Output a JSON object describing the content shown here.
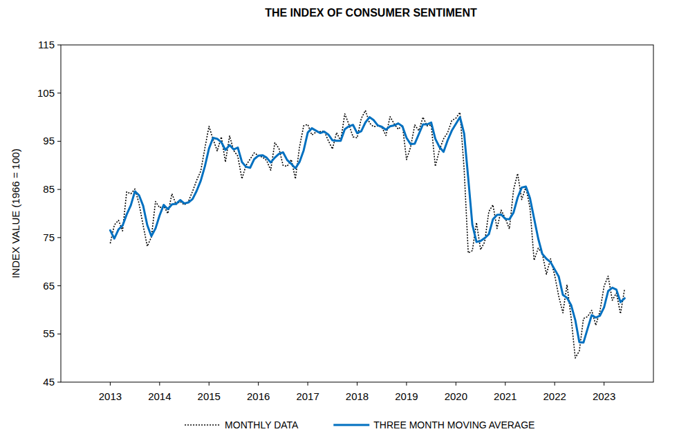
{
  "chart_data": {
    "type": "line",
    "title": "THE INDEX OF CONSUMER SENTIMENT",
    "y_label": "INDEX VALUE (1966 = 100)",
    "xlim": [
      2012,
      2024
    ],
    "xticks": [
      2013,
      2014,
      2015,
      2016,
      2017,
      2018,
      2019,
      2020,
      2021,
      2022,
      2023
    ],
    "ylim": [
      45,
      115
    ],
    "yticks": [
      45,
      55,
      65,
      75,
      85,
      95,
      105,
      115
    ],
    "grid": false,
    "legend": "bottom",
    "x": [
      2013,
      2013.083,
      2013.167,
      2013.25,
      2013.333,
      2013.417,
      2013.5,
      2013.583,
      2013.667,
      2013.75,
      2013.833,
      2013.917,
      2014,
      2014.083,
      2014.167,
      2014.25,
      2014.333,
      2014.417,
      2014.5,
      2014.583,
      2014.667,
      2014.75,
      2014.833,
      2014.917,
      2015,
      2015.083,
      2015.167,
      2015.25,
      2015.333,
      2015.417,
      2015.5,
      2015.583,
      2015.667,
      2015.75,
      2015.833,
      2015.917,
      2016,
      2016.083,
      2016.167,
      2016.25,
      2016.333,
      2016.417,
      2016.5,
      2016.583,
      2016.667,
      2016.75,
      2016.833,
      2016.917,
      2017,
      2017.083,
      2017.167,
      2017.25,
      2017.333,
      2017.417,
      2017.5,
      2017.583,
      2017.667,
      2017.75,
      2017.833,
      2017.917,
      2018,
      2018.083,
      2018.167,
      2018.25,
      2018.333,
      2018.417,
      2018.5,
      2018.583,
      2018.667,
      2018.75,
      2018.833,
      2018.917,
      2019,
      2019.083,
      2019.167,
      2019.25,
      2019.333,
      2019.417,
      2019.5,
      2019.583,
      2019.667,
      2019.75,
      2019.833,
      2019.917,
      2020,
      2020.083,
      2020.167,
      2020.25,
      2020.333,
      2020.417,
      2020.5,
      2020.583,
      2020.667,
      2020.75,
      2020.833,
      2020.917,
      2021,
      2021.083,
      2021.167,
      2021.25,
      2021.333,
      2021.417,
      2021.5,
      2021.583,
      2021.667,
      2021.75,
      2021.833,
      2021.917,
      2022,
      2022.083,
      2022.167,
      2022.25,
      2022.333,
      2022.417,
      2022.5,
      2022.583,
      2022.667,
      2022.75,
      2022.833,
      2022.917,
      2023,
      2023.083,
      2023.167,
      2023.25,
      2023.333,
      2023.417
    ],
    "series": [
      {
        "name": "MONTHLY DATA",
        "color": "#000000",
        "line_style": "dotted",
        "values": [
          73.8,
          77.6,
          78.6,
          76.4,
          84.5,
          84.1,
          85.1,
          82.1,
          77.5,
          73.2,
          75.1,
          82.5,
          81.2,
          81.6,
          80.0,
          84.1,
          81.9,
          82.5,
          81.8,
          82.5,
          84.6,
          86.9,
          88.8,
          93.6,
          98.1,
          95.4,
          93.0,
          95.9,
          90.7,
          96.1,
          93.1,
          91.9,
          87.2,
          90.0,
          91.3,
          92.6,
          92.0,
          91.7,
          91.0,
          89.0,
          94.7,
          93.5,
          90.0,
          89.8,
          91.2,
          87.2,
          93.8,
          98.2,
          98.5,
          96.3,
          96.9,
          97.0,
          97.1,
          95.1,
          93.4,
          96.8,
          95.1,
          100.7,
          98.5,
          95.9,
          95.7,
          99.7,
          101.4,
          98.8,
          98.0,
          98.2,
          97.9,
          96.2,
          100.1,
          98.6,
          97.5,
          98.3,
          91.2,
          93.8,
          98.4,
          97.2,
          100.0,
          98.2,
          98.4,
          89.8,
          93.2,
          95.5,
          96.8,
          99.3,
          99.8,
          101.0,
          89.1,
          71.8,
          72.3,
          78.1,
          72.5,
          74.1,
          80.4,
          81.8,
          76.9,
          80.7,
          79.0,
          76.8,
          84.9,
          88.3,
          82.9,
          85.5,
          81.2,
          70.3,
          72.8,
          71.7,
          67.4,
          70.6,
          67.2,
          62.8,
          59.4,
          65.2,
          58.4,
          50.0,
          51.5,
          58.2,
          58.6,
          59.9,
          56.8,
          59.7,
          64.9,
          67.0,
          62.0,
          63.5,
          59.2,
          64.4
        ]
      },
      {
        "name": "THREE MONTH MOVING AVERAGE",
        "color": "#0070c0",
        "line_style": "solid",
        "values": [
          76.5,
          74.8,
          76.7,
          77.5,
          79.8,
          81.7,
          84.6,
          83.8,
          81.6,
          77.6,
          75.3,
          76.9,
          79.6,
          81.8,
          80.9,
          81.9,
          82.0,
          82.8,
          82.1,
          82.3,
          83.0,
          84.7,
          86.8,
          89.8,
          93.5,
          95.7,
          95.5,
          94.8,
          93.2,
          94.2,
          93.3,
          93.7,
          90.7,
          89.7,
          89.5,
          91.3,
          92.0,
          92.1,
          91.6,
          90.6,
          91.6,
          92.4,
          92.7,
          91.1,
          90.3,
          89.4,
          90.7,
          93.1,
          96.8,
          97.7,
          97.2,
          96.7,
          97.0,
          96.4,
          95.2,
          95.1,
          95.1,
          97.5,
          98.1,
          98.4,
          96.7,
          97.1,
          98.9,
          100.0,
          99.4,
          98.3,
          98.0,
          97.4,
          98.1,
          98.3,
          98.7,
          98.1,
          95.7,
          94.4,
          94.5,
          96.5,
          98.5,
          98.5,
          98.9,
          95.5,
          93.8,
          92.8,
          95.2,
          97.2,
          98.6,
          100.0,
          96.6,
          87.3,
          77.7,
          74.1,
          74.3,
          74.9,
          75.7,
          78.8,
          79.7,
          79.8,
          78.9,
          78.8,
          80.2,
          83.3,
          85.4,
          85.6,
          83.2,
          79.0,
          74.8,
          71.6,
          70.6,
          69.9,
          68.4,
          66.9,
          63.1,
          62.5,
          61.0,
          57.9,
          53.3,
          53.2,
          56.1,
          58.9,
          58.4,
          58.8,
          60.5,
          63.9,
          64.6,
          64.2,
          61.6,
          62.4
        ]
      }
    ]
  }
}
